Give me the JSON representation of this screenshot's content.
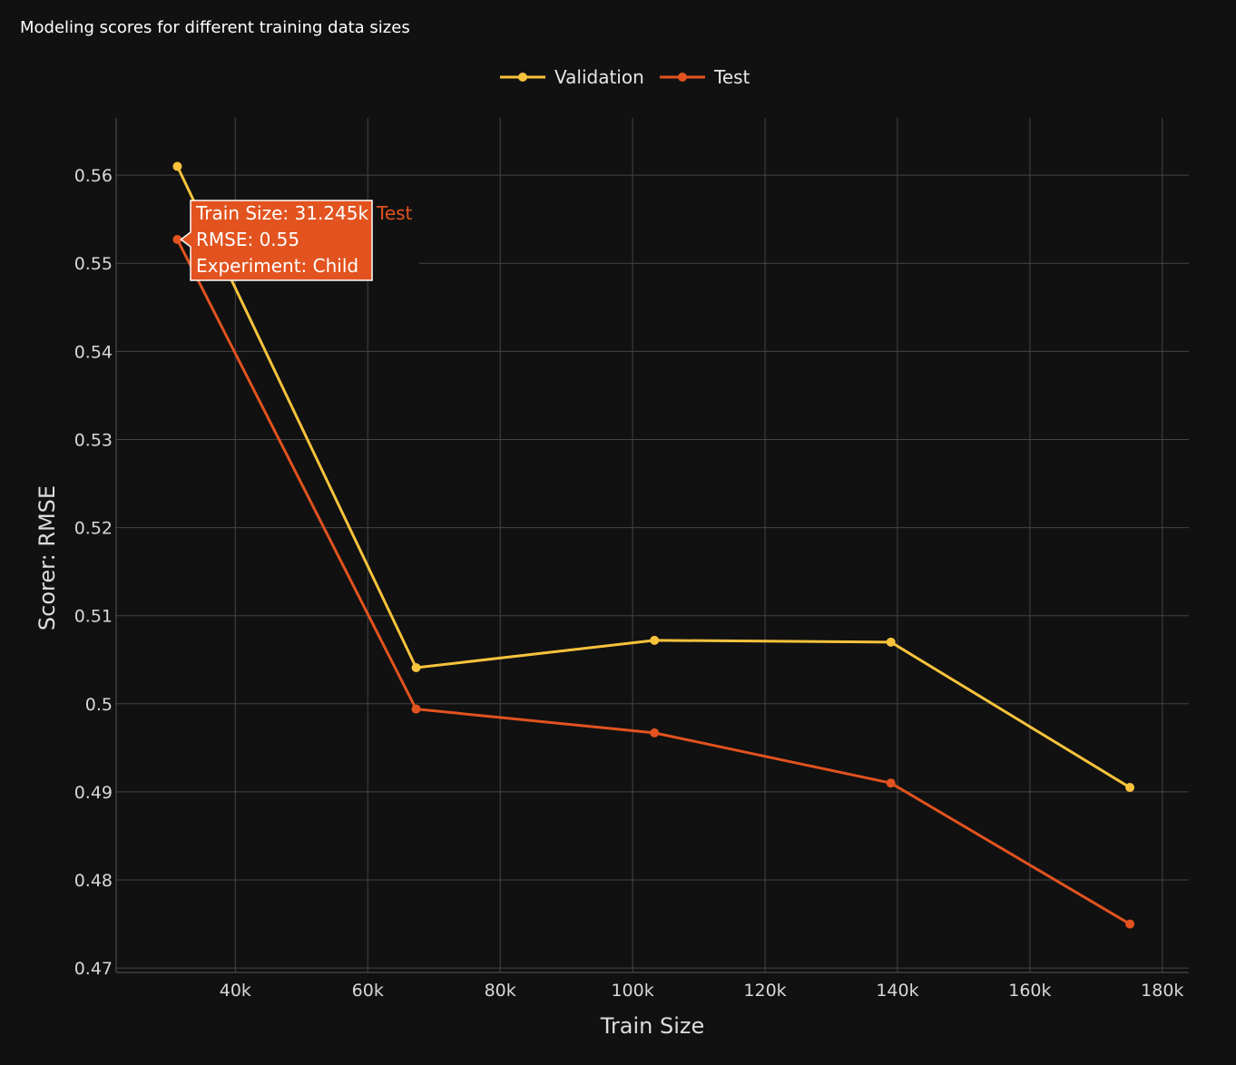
{
  "title": "Modeling scores for different training data sizes",
  "chart_data": {
    "type": "line",
    "title": "Modeling scores for different training data sizes",
    "xlabel": "Train Size",
    "ylabel": "Scorer: RMSE",
    "xlim": [
      22000,
      184000
    ],
    "ylim": [
      0.4695,
      0.5665
    ],
    "x_ticks": [
      40000,
      60000,
      80000,
      100000,
      120000,
      140000,
      160000,
      180000
    ],
    "x_tick_labels": [
      "40k",
      "60k",
      "80k",
      "100k",
      "120k",
      "140k",
      "160k",
      "180k"
    ],
    "y_ticks": [
      0.47,
      0.48,
      0.49,
      0.5,
      0.51,
      0.52,
      0.53,
      0.54,
      0.55,
      0.56
    ],
    "y_tick_labels": [
      "0.47",
      "0.48",
      "0.49",
      "0.5",
      "0.51",
      "0.52",
      "0.53",
      "0.54",
      "0.55",
      "0.56"
    ],
    "grid": true,
    "legend_position": "top-center",
    "x": [
      31245,
      67300,
      103300,
      139000,
      175100
    ],
    "series": [
      {
        "name": "Validation",
        "color": "#f7c33c",
        "values": [
          0.561,
          0.5041,
          0.5072,
          0.507,
          0.4905
        ]
      },
      {
        "name": "Test",
        "color": "#e2531f",
        "values": [
          0.5527,
          0.4994,
          0.4967,
          0.491,
          0.475
        ]
      }
    ],
    "hover": {
      "series": "Test",
      "point_index": 0,
      "lines": [
        "Train Size: 31.245k",
        "RMSE: 0.55",
        "Experiment: Child"
      ],
      "trace_label": "Test"
    }
  }
}
